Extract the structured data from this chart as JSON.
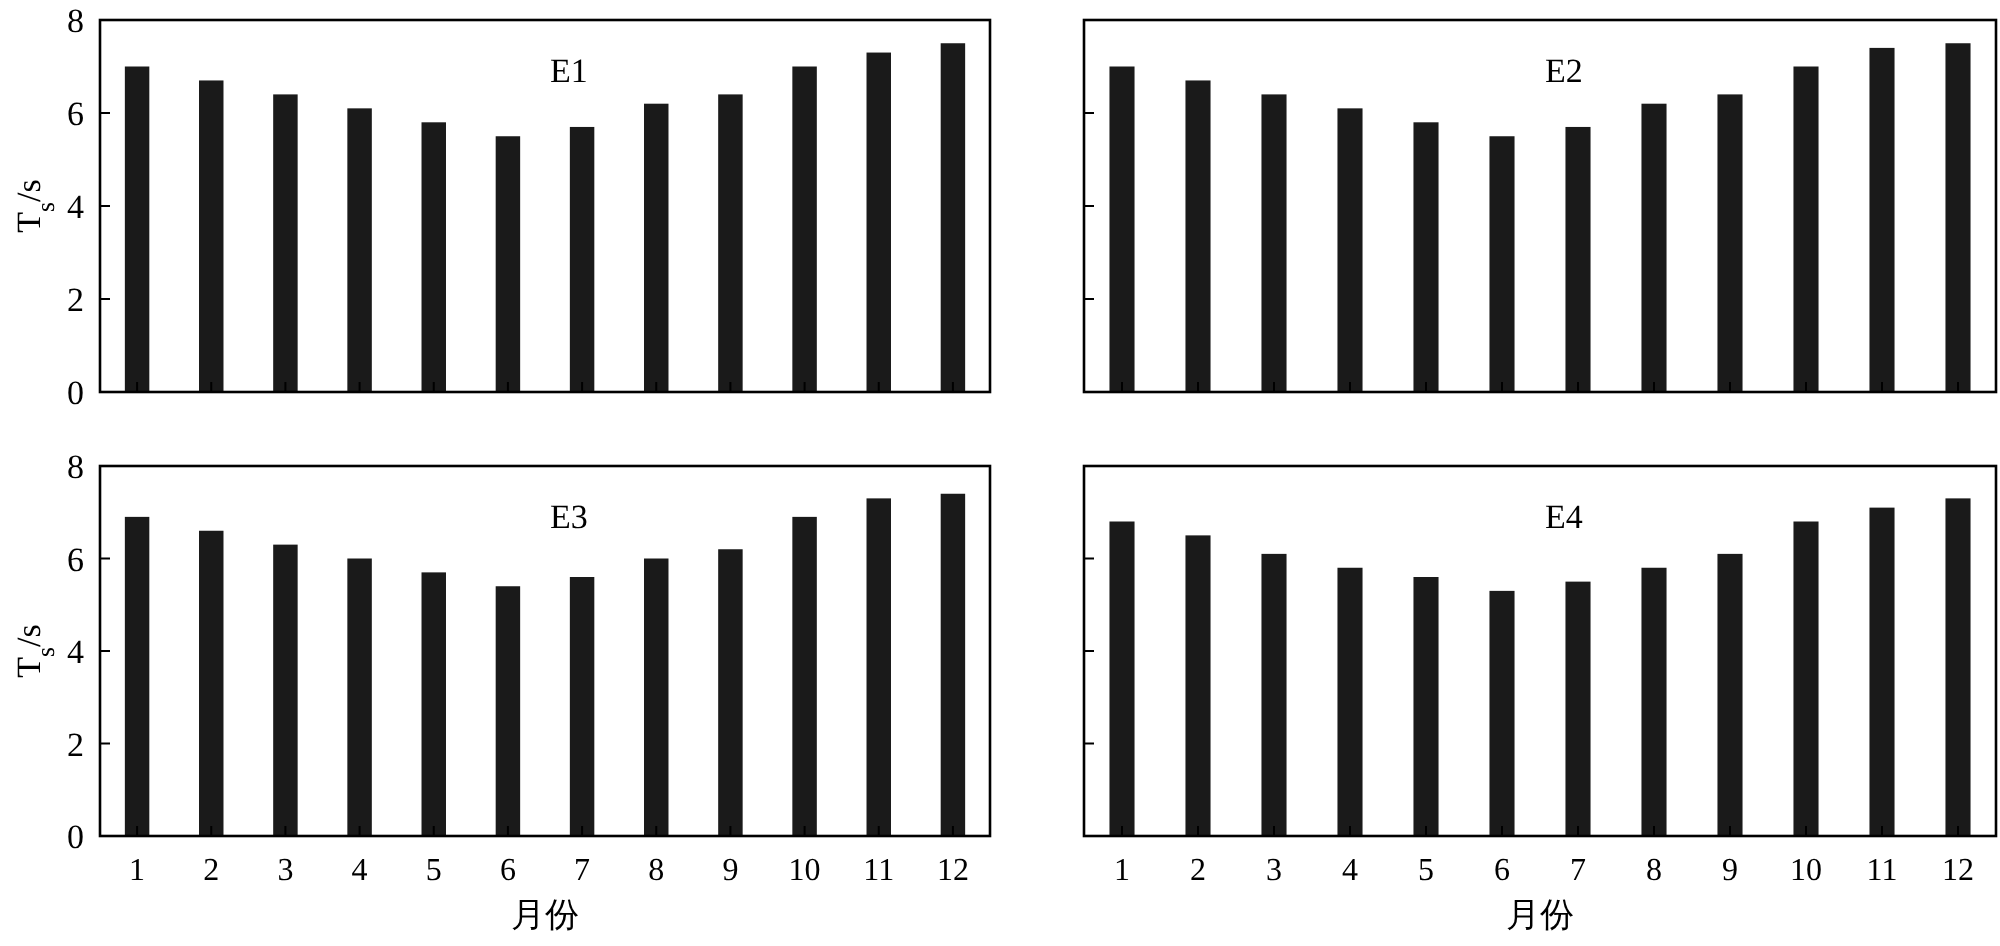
{
  "chart_data": [
    {
      "type": "bar",
      "title": "E1",
      "ylabel": "T$_{s}$/s",
      "categories": [
        "1",
        "2",
        "3",
        "4",
        "5",
        "6",
        "7",
        "8",
        "9",
        "10",
        "11",
        "12"
      ],
      "values": [
        7.0,
        6.7,
        6.4,
        6.1,
        5.8,
        5.5,
        5.7,
        6.2,
        6.4,
        7.0,
        7.3,
        7.5
      ],
      "color": "#1a1a1a",
      "ylim": [
        0,
        8
      ],
      "yticks": [
        0,
        2,
        4,
        6,
        8
      ],
      "tick_labels": "y"
    },
    {
      "type": "bar",
      "title": "E2",
      "categories": [
        "1",
        "2",
        "3",
        "4",
        "5",
        "6",
        "7",
        "8",
        "9",
        "10",
        "11",
        "12"
      ],
      "values": [
        7.0,
        6.7,
        6.4,
        6.1,
        5.8,
        5.5,
        5.7,
        6.2,
        6.4,
        7.0,
        7.4,
        7.5
      ],
      "color": "#1a1a1a",
      "ylim": [
        0,
        8
      ],
      "yticks": [
        0,
        2,
        4,
        6,
        8
      ],
      "tick_labels": false
    },
    {
      "type": "bar",
      "title": "E3",
      "ylabel": "T$_{s}$/s",
      "xlabel": "月份",
      "categories": [
        "1",
        "2",
        "3",
        "4",
        "5",
        "6",
        "7",
        "8",
        "9",
        "10",
        "11",
        "12"
      ],
      "values": [
        6.9,
        6.6,
        6.3,
        6.0,
        5.7,
        5.4,
        5.6,
        6.0,
        6.2,
        6.9,
        7.3,
        7.4
      ],
      "color": "#1a1a1a",
      "ylim": [
        0,
        8
      ],
      "yticks": [
        0,
        2,
        4,
        6,
        8
      ]
    },
    {
      "type": "bar",
      "title": "E4",
      "xlabel": "月份",
      "categories": [
        "1",
        "2",
        "3",
        "4",
        "5",
        "6",
        "7",
        "8",
        "9",
        "10",
        "11",
        "12"
      ],
      "values": [
        6.8,
        6.5,
        6.1,
        5.8,
        5.6,
        5.3,
        5.5,
        5.8,
        6.1,
        6.8,
        7.1,
        7.3
      ],
      "color": "#1a1a1a",
      "ylim": [
        0,
        8
      ],
      "yticks": [
        0,
        2,
        4,
        6,
        8
      ],
      "tick_labels": "x"
    }
  ]
}
